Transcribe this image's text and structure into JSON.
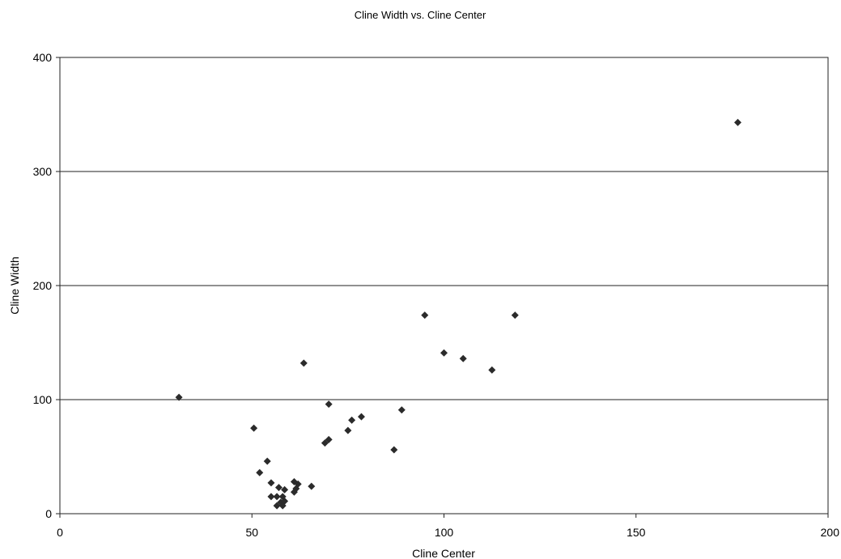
{
  "chart_data": {
    "type": "scatter",
    "title": "Cline Width vs. Cline Center",
    "xlabel": "Cline Center",
    "ylabel": "Cline Width",
    "xlim": [
      0,
      200
    ],
    "ylim": [
      0,
      400
    ],
    "x_ticks": [
      "0",
      "50",
      "100",
      "150",
      "200"
    ],
    "y_ticks": [
      "0",
      "100",
      "200",
      "300",
      "400"
    ],
    "grid": "horizontal",
    "legend": "none",
    "marker_color": "#2b2b2b",
    "series": [
      {
        "points": [
          {
            "x": 31,
            "y": 102
          },
          {
            "x": 50.5,
            "y": 75
          },
          {
            "x": 52,
            "y": 36
          },
          {
            "x": 54,
            "y": 46
          },
          {
            "x": 55,
            "y": 27
          },
          {
            "x": 55,
            "y": 15
          },
          {
            "x": 56.5,
            "y": 7
          },
          {
            "x": 56.5,
            "y": 15
          },
          {
            "x": 57,
            "y": 23
          },
          {
            "x": 57.5,
            "y": 10
          },
          {
            "x": 58,
            "y": 7
          },
          {
            "x": 58,
            "y": 15
          },
          {
            "x": 58.5,
            "y": 21
          },
          {
            "x": 58.5,
            "y": 11
          },
          {
            "x": 61,
            "y": 28
          },
          {
            "x": 61,
            "y": 19
          },
          {
            "x": 61.5,
            "y": 22
          },
          {
            "x": 62,
            "y": 26
          },
          {
            "x": 63.5,
            "y": 132
          },
          {
            "x": 65.5,
            "y": 24
          },
          {
            "x": 69,
            "y": 62
          },
          {
            "x": 70,
            "y": 65
          },
          {
            "x": 70,
            "y": 96
          },
          {
            "x": 75,
            "y": 73
          },
          {
            "x": 76,
            "y": 82
          },
          {
            "x": 78.5,
            "y": 85
          },
          {
            "x": 87,
            "y": 56
          },
          {
            "x": 89,
            "y": 91
          },
          {
            "x": 95,
            "y": 174
          },
          {
            "x": 100,
            "y": 141
          },
          {
            "x": 105,
            "y": 136
          },
          {
            "x": 112.5,
            "y": 126
          },
          {
            "x": 118.5,
            "y": 174
          },
          {
            "x": 176.5,
            "y": 343
          }
        ]
      }
    ]
  }
}
